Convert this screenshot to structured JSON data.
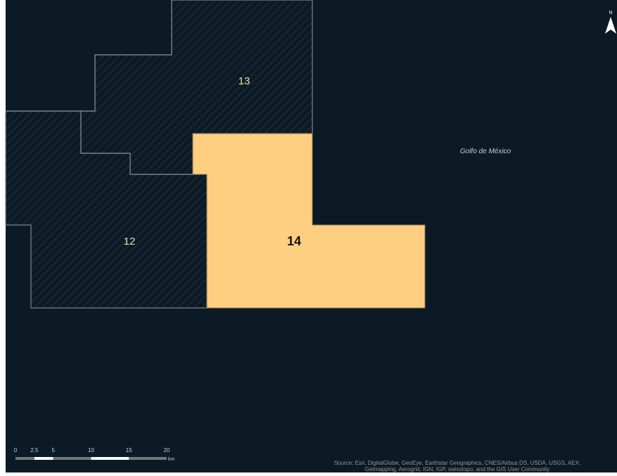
{
  "map": {
    "blocks": [
      {
        "label": "13"
      },
      {
        "label": "12"
      },
      {
        "label": "14"
      }
    ],
    "sea_label": "Golfo de México",
    "north": "N",
    "scale": {
      "ticks": [
        0,
        2.5,
        5,
        10,
        15,
        20
      ],
      "unit": "km"
    },
    "attribution": [
      "Source: Esri, DigitalGlobe, GeoEye, Earthstar Geographics, CNES/Airbus DS, USDA, USGS, AEX,",
      "Getmapping, Aerogrid, IGN, IGP, swisstopo, and the GIS User Community"
    ]
  }
}
